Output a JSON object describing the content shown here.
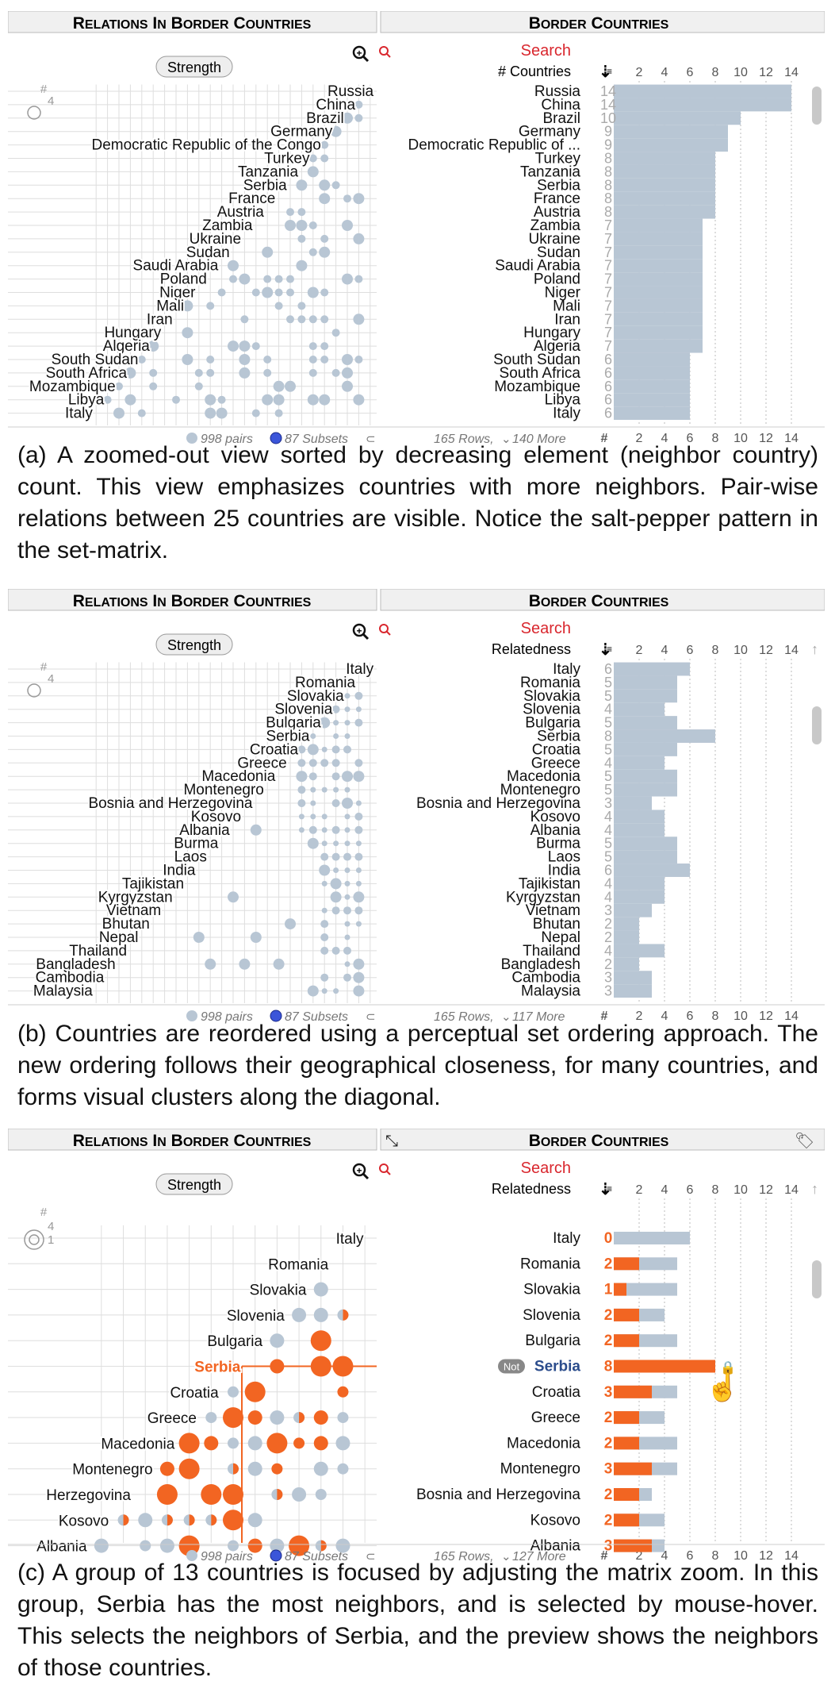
{
  "panels": [
    {
      "header": {
        "left_title": "Relations in Border countries",
        "right_title": "Border countries"
      },
      "strength_button": "Strength",
      "search_label": "Search",
      "sort_label": "# Countries",
      "axis": {
        "ticks": [
          "2",
          "4",
          "6",
          "8",
          "10",
          "12",
          "14"
        ],
        "max": 15,
        "hash": "#"
      },
      "legend": {
        "hash": "#",
        "values": [
          "4"
        ]
      },
      "matrix_labels": [
        "Russia",
        "China",
        "Brazil",
        "Germany",
        "Democratic Republic of the Congo",
        "Turkey",
        "Tanzania",
        "Serbia",
        "France",
        "Austria",
        "Zambia",
        "Ukraine",
        "Sudan",
        "Saudi Arabia",
        "Poland",
        "Niger",
        "Mali",
        "Iran",
        "Hungary",
        "Algeria",
        "South Sudan",
        "South Africa",
        "Mozambique",
        "Libya",
        "Italy"
      ],
      "rows": [
        {
          "label": "Russia",
          "count": 14
        },
        {
          "label": "China",
          "count": 14
        },
        {
          "label": "Brazil",
          "count": 10
        },
        {
          "label": "Germany",
          "count": 9
        },
        {
          "label": "Democratic Republic of ...",
          "count": 9
        },
        {
          "label": "Turkey",
          "count": 8
        },
        {
          "label": "Tanzania",
          "count": 8
        },
        {
          "label": "Serbia",
          "count": 8
        },
        {
          "label": "France",
          "count": 8
        },
        {
          "label": "Austria",
          "count": 8
        },
        {
          "label": "Zambia",
          "count": 7
        },
        {
          "label": "Ukraine",
          "count": 7
        },
        {
          "label": "Sudan",
          "count": 7
        },
        {
          "label": "Saudi Arabia",
          "count": 7
        },
        {
          "label": "Poland",
          "count": 7
        },
        {
          "label": "Niger",
          "count": 7
        },
        {
          "label": "Mali",
          "count": 7
        },
        {
          "label": "Iran",
          "count": 7
        },
        {
          "label": "Hungary",
          "count": 7
        },
        {
          "label": "Algeria",
          "count": 7
        },
        {
          "label": "South Sudan",
          "count": 6
        },
        {
          "label": "South Africa",
          "count": 6
        },
        {
          "label": "Mozambique",
          "count": 6
        },
        {
          "label": "Libya",
          "count": 6
        },
        {
          "label": "Italy",
          "count": 6
        }
      ],
      "footer": {
        "pairs": "998 pairs",
        "subsets": "87 Subsets",
        "rows_info": "165 Rows,",
        "more": "140 More"
      }
    },
    {
      "header": {
        "left_title": "Relations in Border countries",
        "right_title": "Border countries"
      },
      "strength_button": "Strength",
      "search_label": "Search",
      "sort_label": "Relatedness",
      "axis": {
        "ticks": [
          "2",
          "4",
          "6",
          "8",
          "10",
          "12",
          "14"
        ],
        "max": 15,
        "hash": "#"
      },
      "legend": {
        "hash": "#",
        "values": [
          "4"
        ]
      },
      "matrix_labels": [
        "Italy",
        "Romania",
        "Slovakia",
        "Slovenia",
        "Bulgaria",
        "Serbia",
        "Croatia",
        "Greece",
        "Macedonia",
        "Montenegro",
        "Bosnia and Herzegovina",
        "Kosovo",
        "Albania",
        "Burma",
        "Laos",
        "India",
        "Tajikistan",
        "Kyrgyzstan",
        "Vietnam",
        "Bhutan",
        "Nepal",
        "Thailand",
        "Bangladesh",
        "Cambodia",
        "Malaysia"
      ],
      "rows": [
        {
          "label": "Italy",
          "count": 6
        },
        {
          "label": "Romania",
          "count": 5
        },
        {
          "label": "Slovakia",
          "count": 5
        },
        {
          "label": "Slovenia",
          "count": 4
        },
        {
          "label": "Bulgaria",
          "count": 5
        },
        {
          "label": "Serbia",
          "count": 8
        },
        {
          "label": "Croatia",
          "count": 5
        },
        {
          "label": "Greece",
          "count": 4
        },
        {
          "label": "Macedonia",
          "count": 5
        },
        {
          "label": "Montenegro",
          "count": 5
        },
        {
          "label": "Bosnia and Herzegovina",
          "count": 3
        },
        {
          "label": "Kosovo",
          "count": 4
        },
        {
          "label": "Albania",
          "count": 4
        },
        {
          "label": "Burma",
          "count": 5
        },
        {
          "label": "Laos",
          "count": 5
        },
        {
          "label": "India",
          "count": 6
        },
        {
          "label": "Tajikistan",
          "count": 4
        },
        {
          "label": "Kyrgyzstan",
          "count": 4
        },
        {
          "label": "Vietnam",
          "count": 3
        },
        {
          "label": "Bhutan",
          "count": 2
        },
        {
          "label": "Nepal",
          "count": 2
        },
        {
          "label": "Thailand",
          "count": 4
        },
        {
          "label": "Bangladesh",
          "count": 2
        },
        {
          "label": "Cambodia",
          "count": 3
        },
        {
          "label": "Malaysia",
          "count": 3
        }
      ],
      "footer": {
        "pairs": "998 pairs",
        "subsets": "87 Subsets",
        "rows_info": "165 Rows,",
        "more": "117 More"
      }
    },
    {
      "header": {
        "left_title": "Relations in Border countries",
        "right_title": "Border countries"
      },
      "strength_button": "Strength",
      "search_label": "Search",
      "sort_label": "Relatedness",
      "axis": {
        "ticks": [
          "2",
          "4",
          "6",
          "8",
          "10",
          "12",
          "14"
        ],
        "max": 15,
        "hash": "#"
      },
      "legend": {
        "hash": "#",
        "values": [
          "4",
          "1"
        ]
      },
      "matrix_labels": [
        "Italy",
        "Romania",
        "Slovakia",
        "Slovenia",
        "Bulgaria",
        "Serbia",
        "Croatia",
        "Greece",
        "Macedonia",
        "Montenegro",
        "Herzegovina",
        "Kosovo",
        "Albania"
      ],
      "rows": [
        {
          "label": "Italy",
          "count": 6,
          "selected": 0
        },
        {
          "label": "Romania",
          "count": 5,
          "selected": 2
        },
        {
          "label": "Slovakia",
          "count": 5,
          "selected": 1
        },
        {
          "label": "Slovenia",
          "count": 4,
          "selected": 2
        },
        {
          "label": "Bulgaria",
          "count": 5,
          "selected": 2
        },
        {
          "label": "Serbia",
          "count": 8,
          "selected": 8
        },
        {
          "label": "Croatia",
          "count": 5,
          "selected": 3
        },
        {
          "label": "Greece",
          "count": 4,
          "selected": 2
        },
        {
          "label": "Macedonia",
          "count": 5,
          "selected": 2
        },
        {
          "label": "Montenegro",
          "count": 5,
          "selected": 3
        },
        {
          "label": "Bosnia and Herzegovina",
          "count": 3,
          "selected": 2
        },
        {
          "label": "Kosovo",
          "count": 4,
          "selected": 2
        },
        {
          "label": "Albania",
          "count": 4,
          "selected": 3
        }
      ],
      "hovered": "Serbia",
      "not_badge": "Not",
      "footer": {
        "pairs": "998 pairs",
        "subsets": "87 Subsets",
        "rows_info": "165 Rows,",
        "more": "127 More"
      }
    }
  ],
  "captions": [
    "(a) A zoomed-out view sorted by decreasing element (neighbor country) count. This view emphasizes countries with more neighbors. Pair-wise relations between 25 countries are visible. Notice the salt-pepper pattern in the set-matrix.",
    "(b) Countries are reordered using a perceptual set ordering approach. The new ordering follows their geographical closeness, for many countries, and forms visual clusters along the diagonal.",
    "(c) A group of 13 countries is focused by adjusting the matrix zoom. In this group, Serbia has the most neighbors, and is selected by mouse-hover. This selects the neighbors of Serbia, and the preview shows the neighbors of those countries."
  ],
  "colors": {
    "bar": "#b8c6d4",
    "dot": "#b8c6d4",
    "accent": "#f26522",
    "search": "#d9272e",
    "header_bg": "#f0f0f0",
    "grid": "#dedede",
    "link": "#2b4c8c"
  }
}
